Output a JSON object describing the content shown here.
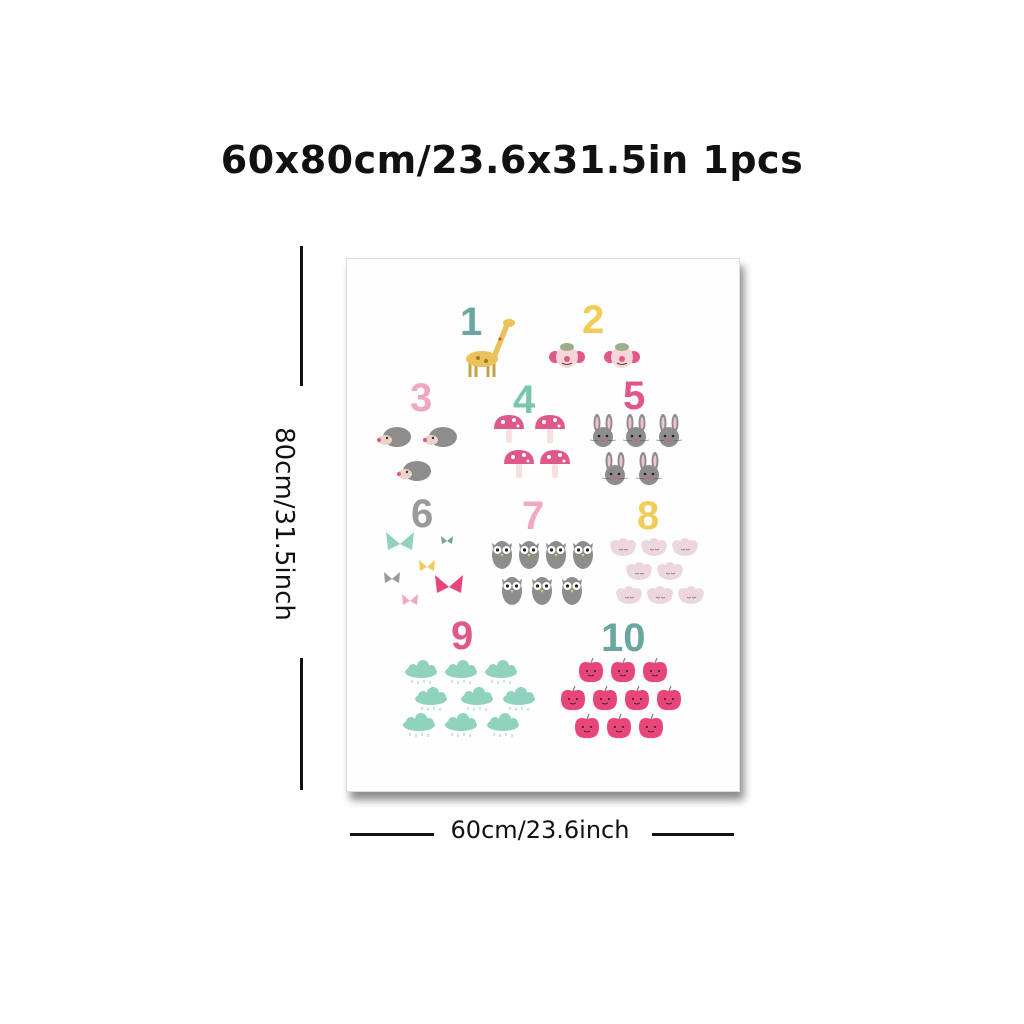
{
  "header": {
    "title": "60x80cm/23.6x31.5in 1pcs"
  },
  "dimensions": {
    "height_label": "80cm/31.5inch",
    "width_label": "60cm/23.6inch"
  },
  "poster": {
    "numbers": [
      {
        "label": "1",
        "color": "#6aa7a0"
      },
      {
        "label": "2",
        "color": "#f1cc57"
      },
      {
        "label": "3",
        "color": "#f0a7bd"
      },
      {
        "label": "4",
        "color": "#7cc6b0"
      },
      {
        "label": "5",
        "color": "#e0588a"
      },
      {
        "label": "6",
        "color": "#9a9a9a"
      },
      {
        "label": "7",
        "color": "#f2a9c0"
      },
      {
        "label": "8",
        "color": "#f1cc57"
      },
      {
        "label": "9",
        "color": "#e0588a"
      },
      {
        "label": "10",
        "color": "#6aa7a0"
      }
    ]
  },
  "icons": [
    "giraffe-icon",
    "clown-icon",
    "hedgehog-icon",
    "mushroom-icon",
    "bunny-icon",
    "butterfly-icon",
    "owl-icon",
    "sheep-icon",
    "cloud-icon",
    "apple-icon"
  ]
}
